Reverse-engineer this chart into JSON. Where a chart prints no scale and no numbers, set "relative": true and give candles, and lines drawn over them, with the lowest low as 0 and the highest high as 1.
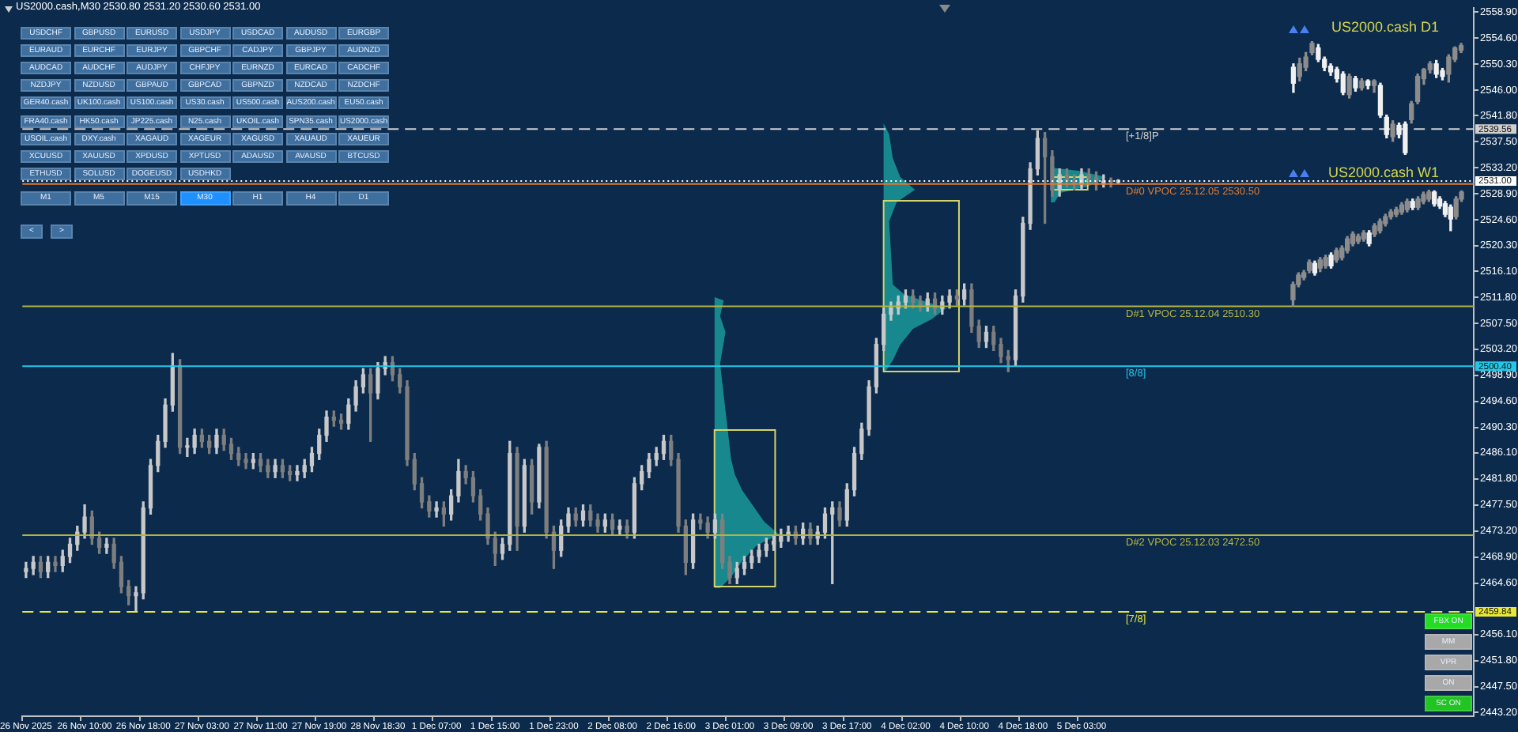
{
  "chart_data": [
    {
      "type": "candlestick",
      "title": "US2000.cash,M30 2530.80 2531.20 2530.60 2531.00",
      "categories": [
        "26 Nov 2025",
        null,
        null,
        null,
        null,
        null,
        null,
        null,
        "26 Nov 10:00",
        null,
        null,
        null,
        null,
        null,
        null,
        null,
        "26 Nov 18:00",
        null,
        null,
        null,
        null,
        null,
        null,
        null,
        "27 Nov 03:00",
        null,
        null,
        null,
        null,
        null,
        null,
        null,
        "27 Nov 11:00",
        null,
        null,
        null,
        null,
        null,
        null,
        null,
        "27 Nov 19:00",
        null,
        null,
        null,
        null,
        null,
        null,
        null,
        "28 Nov 18:30",
        null,
        null,
        null,
        null,
        null,
        null,
        null,
        "1 Dec 07:00",
        null,
        null,
        null,
        null,
        null,
        null,
        null,
        "1 Dec 15:00",
        null,
        null,
        null,
        null,
        null,
        null,
        null,
        "1 Dec 23:00",
        null,
        null,
        null,
        null,
        null,
        null,
        null,
        "2 Dec 08:00",
        null,
        null,
        null,
        null,
        null,
        null,
        null,
        "2 Dec 16:00",
        null,
        null,
        null,
        null,
        null,
        null,
        null,
        "3 Dec 01:00",
        null,
        null,
        null,
        null,
        null,
        null,
        null,
        "3 Dec 09:00",
        null,
        null,
        null,
        null,
        null,
        null,
        null,
        "3 Dec 17:00",
        null,
        null,
        null,
        null,
        null,
        null,
        null,
        "4 Dec 02:00",
        null,
        null,
        null,
        null,
        null,
        null,
        null,
        "4 Dec 10:00",
        null,
        null,
        null,
        null,
        null,
        null,
        null,
        "4 Dec 18:00",
        null,
        null,
        null,
        null,
        null,
        null,
        null,
        "5 Dec 03:00",
        null,
        null,
        null,
        null,
        null,
        null,
        null,
        null,
        null,
        null,
        null,
        null,
        null,
        null,
        null,
        null,
        null,
        null,
        null,
        null,
        null,
        null,
        null,
        null,
        null,
        null,
        null,
        null,
        null,
        null,
        null,
        null,
        null,
        null,
        null,
        null,
        null,
        null,
        null,
        null,
        null,
        null,
        null,
        null,
        null,
        null,
        null,
        null,
        null,
        null,
        null,
        null,
        null
      ],
      "ohlc": [
        [
          2466.5,
          2468,
          2465.5,
          2467
        ],
        [
          2467,
          2469,
          2466,
          2468
        ],
        [
          2468,
          2469,
          2465.5,
          2466.5
        ],
        [
          2466.5,
          2469,
          2465.5,
          2468
        ],
        [
          2468,
          2469,
          2466.5,
          2467.5
        ],
        [
          2467.5,
          2470,
          2466.5,
          2469
        ],
        [
          2469,
          2472,
          2468,
          2471
        ],
        [
          2471,
          2474,
          2470,
          2473
        ],
        [
          2473,
          2477.5,
          2472,
          2475.5
        ],
        [
          2475.5,
          2476.5,
          2471,
          2472
        ],
        [
          2472,
          2473,
          2469.5,
          2470.5
        ],
        [
          2470.5,
          2472,
          2469.5,
          2471
        ],
        [
          2471,
          2472,
          2467,
          2468
        ],
        [
          2468,
          2469,
          2463,
          2464
        ],
        [
          2464,
          2465,
          2461,
          2462.5
        ],
        [
          2462.5,
          2464,
          2459.9,
          2463
        ],
        [
          2463,
          2478,
          2462,
          2477
        ],
        [
          2477,
          2485,
          2476,
          2484
        ],
        [
          2484,
          2489,
          2483,
          2488
        ],
        [
          2488,
          2495,
          2487,
          2494
        ],
        [
          2494,
          2502.5,
          2493,
          2500.5
        ],
        [
          2500.5,
          2501.5,
          2486,
          2487
        ],
        [
          2487,
          2488.5,
          2485.5,
          2487
        ],
        [
          2487,
          2490,
          2486,
          2489
        ],
        [
          2489,
          2490,
          2487,
          2488
        ],
        [
          2488,
          2489,
          2486,
          2487
        ],
        [
          2487,
          2490,
          2486,
          2489
        ],
        [
          2489,
          2490,
          2486.5,
          2487.5
        ],
        [
          2487.5,
          2488.5,
          2485,
          2486
        ],
        [
          2486,
          2487,
          2484,
          2485
        ],
        [
          2485,
          2486,
          2483.5,
          2484.5
        ],
        [
          2484.5,
          2486,
          2483.5,
          2485
        ],
        [
          2485,
          2486,
          2483,
          2484
        ],
        [
          2484,
          2485,
          2482,
          2483
        ],
        [
          2483,
          2485,
          2482,
          2484
        ],
        [
          2484,
          2485,
          2482,
          2483
        ],
        [
          2483,
          2484,
          2481.5,
          2482.5
        ],
        [
          2482.5,
          2484,
          2481.5,
          2483
        ],
        [
          2483,
          2485,
          2482,
          2484
        ],
        [
          2484,
          2487,
          2483,
          2486
        ],
        [
          2486,
          2490,
          2485,
          2489
        ],
        [
          2489,
          2493,
          2488,
          2492
        ],
        [
          2492,
          2493,
          2490.5,
          2491.5
        ],
        [
          2491.5,
          2492.5,
          2490,
          2491
        ],
        [
          2491,
          2495,
          2490,
          2494
        ],
        [
          2494,
          2498,
          2493,
          2497
        ],
        [
          2497,
          2500,
          2496,
          2499
        ],
        [
          2499,
          2500,
          2488,
          2496
        ],
        [
          2496,
          2501,
          2495,
          2500
        ],
        [
          2500,
          2502,
          2499,
          2501
        ],
        [
          2501,
          2502,
          2498,
          2499
        ],
        [
          2499,
          2500,
          2496,
          2497
        ],
        [
          2497,
          2498,
          2484,
          2485
        ],
        [
          2485,
          2486,
          2480,
          2481
        ],
        [
          2481,
          2482,
          2477,
          2478
        ],
        [
          2478,
          2479,
          2475.5,
          2476.5
        ],
        [
          2476.5,
          2478,
          2475.5,
          2477
        ],
        [
          2477,
          2478,
          2474,
          2476
        ],
        [
          2476,
          2480,
          2475,
          2479
        ],
        [
          2479,
          2485,
          2478,
          2483
        ],
        [
          2483,
          2484,
          2481,
          2482
        ],
        [
          2482,
          2483,
          2478,
          2479
        ],
        [
          2479,
          2480,
          2475,
          2476
        ],
        [
          2476,
          2477,
          2471,
          2472
        ],
        [
          2472,
          2473,
          2467.5,
          2469.5
        ],
        [
          2469.5,
          2472,
          2468.5,
          2471
        ],
        [
          2471,
          2488,
          2470,
          2486
        ],
        [
          2486,
          2487,
          2470,
          2474
        ],
        [
          2474,
          2485,
          2473,
          2484
        ],
        [
          2484,
          2485,
          2476,
          2478
        ],
        [
          2478,
          2487.5,
          2477,
          2487
        ],
        [
          2487,
          2488,
          2472,
          2473
        ],
        [
          2473,
          2474,
          2467,
          2470
        ],
        [
          2470,
          2475,
          2469,
          2474
        ],
        [
          2474,
          2477,
          2473,
          2476
        ],
        [
          2476,
          2477,
          2474,
          2475
        ],
        [
          2475,
          2477.5,
          2474,
          2476.5
        ],
        [
          2476.5,
          2477.5,
          2474,
          2475
        ],
        [
          2475,
          2476,
          2473,
          2474
        ],
        [
          2474,
          2476,
          2473,
          2475
        ],
        [
          2475,
          2476,
          2472.5,
          2473.5
        ],
        [
          2473.5,
          2475,
          2472.5,
          2474
        ],
        [
          2474,
          2475,
          2472,
          2473
        ],
        [
          2473,
          2482,
          2472,
          2481
        ],
        [
          2481,
          2484,
          2480,
          2483
        ],
        [
          2483,
          2486,
          2482,
          2485
        ],
        [
          2485,
          2487,
          2484,
          2486
        ],
        [
          2486,
          2489,
          2485,
          2488
        ],
        [
          2488,
          2489,
          2484,
          2485
        ],
        [
          2485,
          2486,
          2473,
          2474
        ],
        [
          2474,
          2475,
          2466,
          2468
        ],
        [
          2468,
          2476,
          2467,
          2475
        ],
        [
          2475,
          2476,
          2473.5,
          2474.5
        ],
        [
          2474.5,
          2475.5,
          2472,
          2473
        ],
        [
          2473,
          2476,
          2472,
          2475
        ],
        [
          2475,
          2476,
          2467,
          2468
        ],
        [
          2468,
          2469,
          2464.5,
          2465.5
        ],
        [
          2465.5,
          2468,
          2464.5,
          2467
        ],
        [
          2467,
          2469,
          2466,
          2468
        ],
        [
          2468,
          2470,
          2467,
          2469
        ],
        [
          2469,
          2471,
          2468,
          2470
        ],
        [
          2470,
          2472,
          2469,
          2471
        ],
        [
          2471,
          2472.5,
          2470,
          2471.5
        ],
        [
          2471.5,
          2473.5,
          2470.5,
          2472.5
        ],
        [
          2472.5,
          2474,
          2471.5,
          2473
        ],
        [
          2473,
          2474,
          2471,
          2472
        ],
        [
          2472,
          2474.5,
          2471,
          2473.5
        ],
        [
          2473.5,
          2474.5,
          2471,
          2472
        ],
        [
          2472,
          2474,
          2471,
          2473
        ],
        [
          2473,
          2477,
          2472,
          2476
        ],
        [
          2476,
          2478,
          2464.5,
          2477
        ],
        [
          2477,
          2478,
          2474,
          2475
        ],
        [
          2475,
          2481,
          2474,
          2480
        ],
        [
          2480,
          2487,
          2479,
          2486
        ],
        [
          2486,
          2491,
          2485,
          2490
        ],
        [
          2490,
          2498,
          2489,
          2497
        ],
        [
          2497,
          2505,
          2496,
          2504
        ],
        [
          2504,
          2510,
          2503,
          2509
        ],
        [
          2509,
          2511,
          2508,
          2510
        ],
        [
          2510,
          2512,
          2509,
          2511
        ],
        [
          2511,
          2513,
          2510,
          2512
        ],
        [
          2512,
          2513,
          2510,
          2511
        ],
        [
          2511,
          2512,
          2509.5,
          2510.5
        ],
        [
          2510.5,
          2512.5,
          2509.5,
          2511.5
        ],
        [
          2511.5,
          2512.5,
          2509,
          2510
        ],
        [
          2510,
          2512,
          2509,
          2511
        ],
        [
          2511,
          2513,
          2510,
          2512
        ],
        [
          2512,
          2513,
          2510.5,
          2511.5
        ],
        [
          2511.5,
          2514,
          2510.5,
          2513
        ],
        [
          2513,
          2514,
          2506,
          2507
        ],
        [
          2507,
          2508,
          2503.5,
          2504.5
        ],
        [
          2504.5,
          2507,
          2503.5,
          2506
        ],
        [
          2506,
          2507,
          2503,
          2504
        ],
        [
          2504,
          2505,
          2501,
          2502
        ],
        [
          2502,
          2503,
          2499.5,
          2501.5
        ],
        [
          2501.5,
          2513,
          2500.5,
          2512
        ],
        [
          2512,
          2525,
          2511,
          2524
        ],
        [
          2524,
          2534,
          2523,
          2533
        ],
        [
          2533,
          2539.3,
          2532,
          2538
        ],
        [
          2538,
          2539,
          2524,
          2535
        ],
        [
          2535,
          2536,
          2528.5,
          2529.5
        ],
        [
          2529.5,
          2533,
          2528.5,
          2532
        ],
        [
          2532,
          2533,
          2530,
          2531
        ],
        [
          2531,
          2532,
          2529.5,
          2530.5
        ],
        [
          2530.5,
          2533,
          2529.5,
          2532
        ],
        [
          2532,
          2533,
          2530.5,
          2531.5
        ],
        [
          2531.5,
          2532.5,
          2529.5,
          2530.5
        ],
        [
          2530.5,
          2532,
          2530,
          2531
        ],
        [
          2531,
          2531.5,
          2530,
          2530.8
        ],
        [
          2530.8,
          2531.2,
          2530.6,
          2531
        ],
        null,
        null,
        null,
        null,
        null,
        null,
        null,
        null,
        null,
        null,
        null,
        null,
        null,
        null,
        null,
        null,
        null,
        null,
        null,
        null,
        null,
        null,
        null,
        null,
        null,
        null,
        null,
        null,
        null,
        null,
        null,
        null,
        null,
        null,
        null,
        null,
        null,
        null,
        null,
        null,
        null,
        null,
        null,
        null,
        null,
        null,
        null,
        null
      ],
      "colors": [
        "#c8c8c8",
        "#c8c8c8",
        "#7e7e7e",
        "#c8c8c8",
        "#7e7e7e",
        "#c8c8c8",
        "#c8c8c8",
        "#c8c8c8",
        "#c8c8c8",
        "#7e7e7e",
        "#7e7e7e",
        "#c8c8c8",
        "#7e7e7e",
        "#7e7e7e",
        "#7e7e7e",
        "#c8c8c8",
        "#c8c8c8",
        "#c8c8c8",
        "#c8c8c8",
        "#c8c8c8",
        "#c8c8c8",
        "#7e7e7e",
        "#c8c8c8",
        "#c8c8c8",
        "#7e7e7e",
        "#7e7e7e",
        "#c8c8c8",
        "#7e7e7e",
        "#7e7e7e",
        "#7e7e7e",
        "#7e7e7e",
        "#c8c8c8",
        "#7e7e7e",
        "#7e7e7e",
        "#c8c8c8",
        "#7e7e7e",
        "#7e7e7e",
        "#c8c8c8",
        "#c8c8c8",
        "#c8c8c8",
        "#c8c8c8",
        "#c8c8c8",
        "#7e7e7e",
        "#7e7e7e",
        "#c8c8c8",
        "#c8c8c8",
        "#c8c8c8",
        "#7e7e7e",
        "#c8c8c8",
        "#c8c8c8",
        "#7e7e7e",
        "#7e7e7e",
        "#7e7e7e",
        "#7e7e7e",
        "#7e7e7e",
        "#7e7e7e",
        "#c8c8c8",
        "#7e7e7e",
        "#c8c8c8",
        "#c8c8c8",
        "#7e7e7e",
        "#7e7e7e",
        "#7e7e7e",
        "#7e7e7e",
        "#7e7e7e",
        "#c8c8c8",
        "#c8c8c8",
        "#7e7e7e",
        "#c8c8c8",
        "#7e7e7e",
        "#c8c8c8",
        "#7e7e7e",
        "#7e7e7e",
        "#c8c8c8",
        "#c8c8c8",
        "#7e7e7e",
        "#c8c8c8",
        "#7e7e7e",
        "#7e7e7e",
        "#c8c8c8",
        "#7e7e7e",
        "#c8c8c8",
        "#7e7e7e",
        "#c8c8c8",
        "#c8c8c8",
        "#c8c8c8",
        "#c8c8c8",
        "#c8c8c8",
        "#7e7e7e",
        "#7e7e7e",
        "#7e7e7e",
        "#c8c8c8",
        "#7e7e7e",
        "#7e7e7e",
        "#c8c8c8",
        "#7e7e7e",
        "#7e7e7e",
        "#c8c8c8",
        "#c8c8c8",
        "#c8c8c8",
        "#c8c8c8",
        "#c8c8c8",
        "#c8c8c8",
        "#c8c8c8",
        "#c8c8c8",
        "#7e7e7e",
        "#c8c8c8",
        "#7e7e7e",
        "#c8c8c8",
        "#c8c8c8",
        "#c8c8c8",
        "#7e7e7e",
        "#c8c8c8",
        "#c8c8c8",
        "#c8c8c8",
        "#c8c8c8",
        "#c8c8c8",
        "#c8c8c8",
        "#c8c8c8",
        "#c8c8c8",
        "#c8c8c8",
        "#7e7e7e",
        "#7e7e7e",
        "#c8c8c8",
        "#7e7e7e",
        "#c8c8c8",
        "#c8c8c8",
        "#7e7e7e",
        "#c8c8c8",
        "#7e7e7e",
        "#7e7e7e",
        "#c8c8c8",
        "#7e7e7e",
        "#7e7e7e",
        "#7e7e7e",
        "#c8c8c8",
        "#c8c8c8",
        "#c8c8c8",
        "#c8c8c8",
        "#7e7e7e",
        "#7e7e7e",
        "#c8c8c8",
        "#7e7e7e",
        "#7e7e7e",
        "#c8c8c8",
        "#7e7e7e",
        "#7e7e7e",
        "#c8c8c8",
        "#7e7e7e",
        "#c8c8c8",
        null,
        null,
        null,
        null,
        null,
        null,
        null,
        null,
        null,
        null,
        null,
        null,
        null,
        null,
        null,
        null,
        null,
        null,
        null,
        null,
        null,
        null,
        null,
        null,
        null,
        null,
        null,
        null,
        null,
        null,
        null,
        null,
        null,
        null,
        null,
        null,
        null,
        null,
        null,
        null,
        null,
        null,
        null,
        null,
        null,
        null,
        null,
        null
      ],
      "ylim": [
        2442.6,
        2559.6
      ],
      "yticks": [
        {
          "value": 2443.2,
          "label": "2443.20"
        },
        {
          "value": 2447.5,
          "label": "2447.50"
        },
        {
          "value": 2451.8,
          "label": "2451.80"
        },
        {
          "value": 2456.1,
          "label": "2456.10"
        },
        {
          "value": 2464.6,
          "label": "2464.60"
        },
        {
          "value": 2468.9,
          "label": "2468.90"
        },
        {
          "value": 2473.2,
          "label": "2473.20"
        },
        {
          "value": 2477.5,
          "label": "2477.50"
        },
        {
          "value": 2481.8,
          "label": "2481.80"
        },
        {
          "value": 2486.1,
          "label": "2486.10"
        },
        {
          "value": 2490.3,
          "label": "2490.30"
        },
        {
          "value": 2494.6,
          "label": "2494.60"
        },
        {
          "value": 2498.9,
          "label": "2498.90"
        },
        {
          "value": 2503.2,
          "label": "2503.20"
        },
        {
          "value": 2507.5,
          "label": "2507.50"
        },
        {
          "value": 2511.8,
          "label": "2511.80"
        },
        {
          "value": 2516.1,
          "label": "2516.10"
        },
        {
          "value": 2520.3,
          "label": "2520.30"
        },
        {
          "value": 2524.6,
          "label": "2524.60"
        },
        {
          "value": 2528.9,
          "label": "2528.90"
        },
        {
          "value": 2533.2,
          "label": "2533.20"
        },
        {
          "value": 2537.5,
          "label": "2537.50"
        },
        {
          "value": 2541.8,
          "label": "2541.80"
        },
        {
          "value": 2546.0,
          "label": "2546.00"
        },
        {
          "value": 2550.3,
          "label": "2550.30"
        },
        {
          "value": 2554.6,
          "label": "2554.60"
        },
        {
          "value": 2558.9,
          "label": "2558.90"
        }
      ],
      "ref_lines": [
        {
          "axis": "y",
          "value": 2539.56,
          "label": "2539.56",
          "color": "#d0d0d0",
          "line_style": "dashed"
        },
        {
          "axis": "y",
          "value": 2531,
          "label": "2531.00",
          "color": "#ffffff",
          "line_style": "dotted"
        },
        {
          "axis": "y",
          "value": 2500.4,
          "label": "2500.40",
          "color": "#22c8e8",
          "line_style": "solid"
        },
        {
          "axis": "y",
          "value": 2459.84,
          "label": "2459.84",
          "color": "#e8e838",
          "line_style": "dashed"
        },
        {
          "axis": "y",
          "value": 2530.5,
          "color": "#e07a30",
          "line_style": "solid"
        },
        {
          "axis": "y",
          "value": 2510.3,
          "color": "#b4b440",
          "line_style": "solid"
        },
        {
          "axis": "y",
          "value": 2472.5,
          "color": "#b4b440",
          "line_style": "solid"
        }
      ],
      "annotations": [
        {
          "text": "[+1/8]P",
          "y": 2539.56
        },
        {
          "text": "[8/8]",
          "y": 2500.4
        },
        {
          "text": "[7/8]",
          "y": 2459.84
        },
        {
          "text": "D#0 VPOC 25.12.05 2530.50",
          "y": 2530.5
        },
        {
          "text": "D#1 VPOC 25.12.04 2510.30",
          "y": 2510.3
        },
        {
          "text": "D#2 VPOC 25.12.03 2472.50",
          "y": 2472.5
        }
      ]
    },
    {
      "type": "candlestick",
      "title": "US2000.cash D1",
      "relative": true,
      "categories": [
        null,
        null,
        null,
        null,
        null,
        null,
        null,
        null,
        null,
        null,
        null,
        null,
        null,
        null,
        null,
        null,
        null,
        null,
        null,
        null,
        null,
        null,
        null,
        null,
        null,
        null,
        null,
        null
      ],
      "ohlc": [
        [
          0.77,
          0.8,
          0.55,
          0.63
        ],
        [
          0.69,
          0.85,
          0.65,
          0.8
        ],
        [
          0.77,
          0.9,
          0.74,
          0.86
        ],
        [
          0.9,
          1.0,
          0.88,
          0.98
        ],
        [
          0.94,
          0.97,
          0.82,
          0.84
        ],
        [
          0.84,
          0.86,
          0.74,
          0.77
        ],
        [
          0.78,
          0.8,
          0.7,
          0.73
        ],
        [
          0.75,
          0.77,
          0.64,
          0.67
        ],
        [
          0.71,
          0.73,
          0.53,
          0.55
        ],
        [
          0.53,
          0.71,
          0.5,
          0.69
        ],
        [
          0.67,
          0.69,
          0.56,
          0.59
        ],
        [
          0.59,
          0.67,
          0.57,
          0.65
        ],
        [
          0.65,
          0.66,
          0.58,
          0.61
        ],
        [
          0.61,
          0.66,
          0.55,
          0.65
        ],
        [
          0.61,
          0.63,
          0.33,
          0.35
        ],
        [
          0.33,
          0.35,
          0.15,
          0.18
        ],
        [
          0.16,
          0.3,
          0.12,
          0.27
        ],
        [
          0.26,
          0.28,
          0.15,
          0.18
        ],
        [
          0.27,
          0.29,
          0.0,
          0.02
        ],
        [
          0.31,
          0.47,
          0.28,
          0.45
        ],
        [
          0.47,
          0.71,
          0.45,
          0.69
        ],
        [
          0.67,
          0.76,
          0.62,
          0.75
        ],
        [
          0.75,
          0.82,
          0.72,
          0.8
        ],
        [
          0.8,
          0.83,
          0.68,
          0.71
        ],
        [
          0.74,
          0.76,
          0.66,
          0.69
        ],
        [
          0.71,
          0.88,
          0.64,
          0.86
        ],
        [
          0.84,
          0.95,
          0.82,
          0.94
        ],
        [
          0.92,
          0.98,
          0.9,
          0.96
        ]
      ],
      "colors": [
        "#f0f0f0",
        "#8c8c8c",
        "#8c8c8c",
        "#8c8c8c",
        "#f0f0f0",
        "#f0f0f0",
        "#f0f0f0",
        "#f0f0f0",
        "#f0f0f0",
        "#8c8c8c",
        "#f0f0f0",
        "#8c8c8c",
        "#f0f0f0",
        "#8c8c8c",
        "#f0f0f0",
        "#f0f0f0",
        "#8c8c8c",
        "#f0f0f0",
        "#f0f0f0",
        "#8c8c8c",
        "#8c8c8c",
        "#8c8c8c",
        "#8c8c8c",
        "#f0f0f0",
        "#f0f0f0",
        "#8c8c8c",
        "#8c8c8c",
        "#8c8c8c"
      ]
    },
    {
      "type": "candlestick",
      "title": "US2000.cash W1",
      "relative": true,
      "categories": [
        null,
        null,
        null,
        null,
        null,
        null,
        null,
        null,
        null,
        null,
        null,
        null,
        null,
        null,
        null,
        null,
        null,
        null,
        null,
        null,
        null,
        null,
        null,
        null,
        null,
        null,
        null,
        null,
        null,
        null,
        null,
        null
      ],
      "ohlc": [
        [
          0.06,
          0.21,
          0.0,
          0.19
        ],
        [
          0.19,
          0.29,
          0.17,
          0.27
        ],
        [
          0.25,
          0.31,
          0.23,
          0.29
        ],
        [
          0.31,
          0.4,
          0.29,
          0.38
        ],
        [
          0.37,
          0.39,
          0.27,
          0.29
        ],
        [
          0.33,
          0.42,
          0.3,
          0.4
        ],
        [
          0.35,
          0.44,
          0.33,
          0.42
        ],
        [
          0.44,
          0.46,
          0.33,
          0.35
        ],
        [
          0.4,
          0.5,
          0.38,
          0.48
        ],
        [
          0.42,
          0.52,
          0.4,
          0.5
        ],
        [
          0.48,
          0.6,
          0.46,
          0.58
        ],
        [
          0.54,
          0.64,
          0.52,
          0.62
        ],
        [
          0.56,
          0.62,
          0.54,
          0.6
        ],
        [
          0.58,
          0.65,
          0.56,
          0.63
        ],
        [
          0.63,
          0.65,
          0.52,
          0.54
        ],
        [
          0.62,
          0.71,
          0.6,
          0.69
        ],
        [
          0.65,
          0.75,
          0.63,
          0.73
        ],
        [
          0.71,
          0.79,
          0.69,
          0.77
        ],
        [
          0.77,
          0.83,
          0.75,
          0.81
        ],
        [
          0.79,
          0.85,
          0.77,
          0.83
        ],
        [
          0.81,
          0.89,
          0.79,
          0.87
        ],
        [
          0.83,
          0.92,
          0.81,
          0.9
        ],
        [
          0.9,
          0.92,
          0.83,
          0.85
        ],
        [
          0.85,
          0.94,
          0.83,
          0.92
        ],
        [
          0.9,
          0.98,
          0.88,
          0.96
        ],
        [
          0.92,
          1.0,
          0.9,
          0.98
        ],
        [
          0.98,
          0.99,
          0.86,
          0.88
        ],
        [
          0.92,
          0.94,
          0.84,
          0.86
        ],
        [
          0.88,
          0.9,
          0.77,
          0.79
        ],
        [
          0.85,
          0.87,
          0.65,
          0.75
        ],
        [
          0.77,
          0.94,
          0.75,
          0.92
        ],
        [
          0.92,
          0.99,
          0.9,
          0.98
        ]
      ],
      "colors": [
        "#8c8c8c",
        "#8c8c8c",
        "#8c8c8c",
        "#8c8c8c",
        "#f0f0f0",
        "#8c8c8c",
        "#8c8c8c",
        "#f0f0f0",
        "#8c8c8c",
        "#8c8c8c",
        "#8c8c8c",
        "#8c8c8c",
        "#8c8c8c",
        "#8c8c8c",
        "#f0f0f0",
        "#8c8c8c",
        "#8c8c8c",
        "#8c8c8c",
        "#8c8c8c",
        "#8c8c8c",
        "#8c8c8c",
        "#8c8c8c",
        "#f0f0f0",
        "#8c8c8c",
        "#8c8c8c",
        "#8c8c8c",
        "#f0f0f0",
        "#f0f0f0",
        "#f0f0f0",
        "#f0f0f0",
        "#8c8c8c",
        "#8c8c8c"
      ]
    },
    {
      "type": "other",
      "categories": [
        "USDCHF",
        "GBPUSD",
        "EURUSD",
        "USDJPY",
        "USDCAD",
        "AUDUSD",
        "EURGBP",
        "EURAUD",
        "EURCHF",
        "EURJPY",
        "GBPCHF",
        "CADJPY",
        "GBPJPY",
        "AUDNZD",
        "AUDCAD",
        "AUDCHF",
        "AUDJPY",
        "CHFJPY",
        "EURNZD",
        "EURCAD",
        "CADCHF",
        "NZDJPY",
        "NZDUSD",
        "GBPAUD",
        "GBPCAD",
        "GBPNZD",
        "NZDCAD",
        "NZDCHF",
        "GER40.cash",
        "UK100.cash",
        "US100.cash",
        "US30.cash",
        "US500.cash",
        "AUS200.cash",
        "EU50.cash",
        "FRA40.cash",
        "HK50.cash",
        "JP225.cash",
        "N25.cash",
        "UKOIL.cash",
        "SPN35.cash",
        "US2000.cash",
        "USOIL.cash",
        "DXY.cash",
        "XAGAUD",
        "XAGEUR",
        "XAGUSD",
        "XAUAUD",
        "XAUEUR",
        "XCUUSD",
        "XAUUSD",
        "XPDUSD",
        "XPTUSD",
        "ADAUSD",
        "AVAUSD",
        "BTCUSD",
        "ETHUSD",
        "SOLUSD",
        "DOGEUSD",
        "USDHKD"
      ],
      "colors": [
        "#3f6f9e",
        "#3f6f9e",
        "#3f6f9e",
        "#3f6f9e",
        "#3f6f9e",
        "#3f6f9e",
        "#3f6f9e",
        "#3f6f9e",
        "#3f6f9e",
        "#3f6f9e",
        "#3f6f9e",
        "#3f6f9e",
        "#3f6f9e",
        "#3f6f9e",
        "#3f6f9e",
        "#3f6f9e",
        "#3f6f9e",
        "#3f6f9e",
        "#3f6f9e",
        "#3f6f9e",
        "#3f6f9e",
        "#3f6f9e",
        "#3f6f9e",
        "#3f6f9e",
        "#3f6f9e",
        "#3f6f9e",
        "#3f6f9e",
        "#3f6f9e",
        "#3f6f9e",
        "#3f6f9e",
        "#3f6f9e",
        "#3f6f9e",
        "#3f6f9e",
        "#3f6f9e",
        "#3f6f9e",
        "#3f6f9e",
        "#3f6f9e",
        "#3f6f9e",
        "#3f6f9e",
        "#3f6f9e",
        "#3f6f9e",
        "#3f6f9e",
        "#3f6f9e",
        "#3f6f9e",
        "#3f6f9e",
        "#3f6f9e",
        "#3f6f9e",
        "#3f6f9e",
        "#3f6f9e",
        "#3f6f9e",
        "#3f6f9e",
        "#3f6f9e",
        "#3f6f9e",
        "#3f6f9e",
        "#3f6f9e",
        "#3f6f9e",
        "#3f6f9e",
        "#3f6f9e",
        "#3f6f9e",
        "#3f6f9e"
      ]
    },
    {
      "type": "other",
      "categories": [
        "M1",
        "M5",
        "M15",
        "M30",
        "H1",
        "H4",
        "D1"
      ],
      "colors": [
        "#3f6f9e",
        "#3f6f9e",
        "#3f6f9e",
        "#1e90ff",
        "#3f6f9e",
        "#3f6f9e",
        "#3f6f9e"
      ]
    },
    {
      "type": "other",
      "categories": [
        "<",
        ">"
      ],
      "colors": [
        "#3f6f9e",
        "#3f6f9e"
      ]
    },
    {
      "type": "other",
      "categories": [
        "FBX ON",
        "MM",
        "VPR",
        "ON",
        "SC ON"
      ],
      "colors": [
        "#22dd22",
        "#a8a8a8",
        "#a8a8a8",
        "#a8a8a8",
        "#22c422"
      ]
    }
  ]
}
